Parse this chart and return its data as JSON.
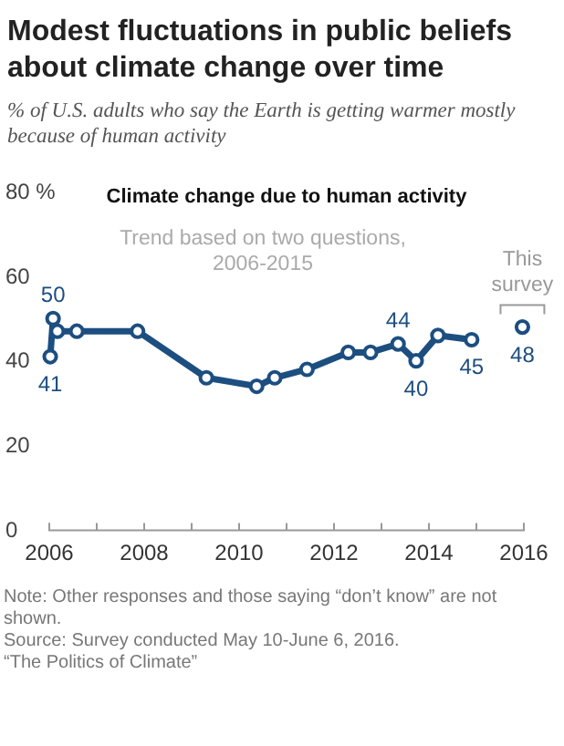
{
  "chart_data": {
    "type": "line",
    "title": "Modest fluctuations in public beliefs about climate change over time",
    "subtitle": "% of U.S. adults who say the Earth is getting warmer mostly because of human activity",
    "xlim": [
      2006,
      2016
    ],
    "xticks": [
      2006,
      {
        "value": 2007,
        "label": null
      },
      2008,
      {
        "value": 2009,
        "label": null
      },
      2010,
      {
        "value": 2011,
        "label": null
      },
      2012,
      {
        "value": 2013,
        "label": null
      },
      2014,
      {
        "value": 2015,
        "label": null
      },
      2016
    ],
    "ylim": [
      0,
      80
    ],
    "yticks": [
      0,
      20,
      40,
      60,
      {
        "value": 80,
        "label": "80 %"
      }
    ],
    "grid": false,
    "marker": "circle",
    "line_style": "solid",
    "series": [
      {
        "color": "#1c4e80",
        "x": [
          2006.02,
          2006.08,
          2006.17,
          2006.58,
          2007.86,
          2009.31,
          2010.37,
          2010.75,
          2011.43,
          2012.3,
          2012.77,
          2013.35,
          2013.73,
          2014.19,
          2014.9
        ],
        "values": [
          41,
          50,
          47,
          47,
          47,
          36,
          34,
          36,
          38,
          42,
          42,
          44,
          40,
          46,
          45
        ],
        "value_labels": [
          "41",
          "50",
          null,
          null,
          null,
          null,
          null,
          null,
          null,
          null,
          null,
          "44",
          "40",
          null,
          "45"
        ]
      },
      {
        "type": "scatter",
        "color": "#1c4e80",
        "x": [
          2015.97
        ],
        "values": [
          48
        ],
        "value_labels": [
          "48"
        ]
      }
    ],
    "annotations": [
      "Climate change due to human activity",
      "Trend based on two questions, 2006-2015",
      {
        "text": "This survey",
        "x": 2015.97,
        "y": 48
      },
      "Note: Other responses and those saying “don’t know” are not shown.",
      "Source: Survey conducted May 10-June 6, 2016.",
      "“The Politics of Climate”"
    ]
  }
}
